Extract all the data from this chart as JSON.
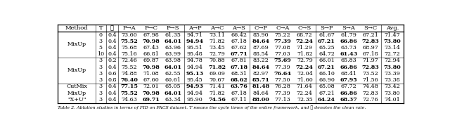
{
  "caption": "Table 2. Ablation studies in terms of FID on PACS dataset. T means the cycle times of the entire framework, and ℛ denotes the clean rate.",
  "columns": [
    "Method",
    "T",
    "ℛ",
    "P→A",
    "P→C",
    "P→S",
    "A→P",
    "A→C",
    "A→S",
    "C→P",
    "C→A",
    "C→S",
    "S→P",
    "S→A",
    "S→C",
    "Avg."
  ],
  "rows": [
    [
      "MixUp",
      "0",
      "0.4",
      "73.60",
      "67.98",
      "61.35",
      "94.71",
      "73.11",
      "66.42",
      "85.90",
      "75.22",
      "68.72",
      "61.67",
      "61.79",
      "67.21",
      "71.47"
    ],
    [
      "",
      "3",
      "0.4",
      "75.52",
      "70.98",
      "64.01",
      "94.94",
      "71.82",
      "67.18",
      "84.64",
      "77.39",
      "72.24",
      "67.21",
      "66.86",
      "72.83",
      "73.80"
    ],
    [
      "",
      "5",
      "0.4",
      "75.68",
      "67.43",
      "63.96",
      "95.51",
      "73.45",
      "67.62",
      "87.69",
      "77.08",
      "71.29",
      "65.25",
      "63.73",
      "68.97",
      "73.14"
    ],
    [
      "",
      "10",
      "0.4",
      "75.16",
      "66.81",
      "63.99",
      "95.48",
      "72.79",
      "67.71",
      "88.54",
      "77.03",
      "71.82",
      "64.72",
      "61.43",
      "67.18",
      "72.72"
    ],
    [
      "MixUp",
      "3",
      "0.2",
      "72.46",
      "69.87",
      "63.98",
      "94.78",
      "70.88",
      "67.81",
      "83.22",
      "75.69",
      "72.79",
      "66.01",
      "65.83",
      "71.97",
      "72.94"
    ],
    [
      "",
      "3",
      "0.4",
      "75.52",
      "70.98",
      "64.01",
      "94.94",
      "71.82",
      "67.18",
      "84.64",
      "77.39",
      "72.24",
      "67.21",
      "66.86",
      "72.83",
      "73.80"
    ],
    [
      "",
      "3",
      "0.6",
      "74.88",
      "71.08",
      "62.55",
      "95.13",
      "69.09",
      "68.31",
      "82.97",
      "76.64",
      "72.04",
      "66.10",
      "68.41",
      "73.52",
      "73.39"
    ],
    [
      "",
      "3",
      "0.8",
      "76.40",
      "67.60",
      "60.61",
      "95.45",
      "70.67",
      "68.62",
      "85.71",
      "77.50",
      "71.60",
      "66.90",
      "67.95",
      "71.56",
      "73.38"
    ],
    [
      "CutMix",
      "3",
      "0.4",
      "77.15",
      "72.01",
      "65.05",
      "94.93",
      "71.41",
      "63.76",
      "81.48",
      "76.28",
      "71.64",
      "65.08",
      "67.72",
      "74.48",
      "73.42"
    ],
    [
      "MixUp",
      "3",
      "0.4",
      "75.52",
      "70.98",
      "64.01",
      "94.94",
      "71.82",
      "67.18",
      "84.64",
      "77.39",
      "72.24",
      "67.21",
      "66.86",
      "72.83",
      "73.80"
    ],
    [
      "\"X+U\"",
      "3",
      "0.4",
      "74.63",
      "69.71",
      "63.34",
      "95.90",
      "74.56",
      "67.11",
      "88.00",
      "77.13",
      "72.35",
      "64.24",
      "68.37",
      "72.76",
      "74.01"
    ]
  ],
  "bold_cells": {
    "1": [
      3,
      4,
      5,
      6,
      9,
      10,
      11,
      12,
      13,
      14,
      15
    ],
    "3": [
      8,
      13
    ],
    "4": [
      10
    ],
    "5": [
      4,
      5,
      7,
      8,
      9,
      11,
      12,
      13,
      14,
      15
    ],
    "6": [
      6,
      10
    ],
    "7": [
      3,
      8,
      8,
      9,
      9,
      13
    ],
    "8": [
      3,
      6,
      8,
      9
    ],
    "9": [
      3,
      4,
      5,
      13
    ],
    "10": [
      4,
      7,
      9,
      12,
      13
    ],
    "11": [
      6,
      7,
      8,
      12,
      15
    ]
  },
  "group_dividers_after_row": [
    3,
    7
  ],
  "method_groups": [
    [
      0,
      3,
      "MixUp"
    ],
    [
      4,
      7,
      "MixUp"
    ],
    [
      8,
      8,
      "CutMix"
    ],
    [
      9,
      9,
      "MixUp"
    ],
    [
      10,
      10,
      "\"X+U\""
    ]
  ],
  "col_widths_rel": [
    5.5,
    1.5,
    1.8,
    3.2,
    3.2,
    3.2,
    3.2,
    3.2,
    3.2,
    3.2,
    3.2,
    3.2,
    3.2,
    3.2,
    3.2,
    3.2
  ],
  "vert_dividers_after_col": [
    0,
    1,
    2,
    5,
    8,
    11,
    14
  ],
  "thick_horiz": [
    0,
    1,
    9,
    10
  ],
  "fontsize_header": 6.0,
  "fontsize_data": 5.8,
  "fontsize_caption": 4.5
}
